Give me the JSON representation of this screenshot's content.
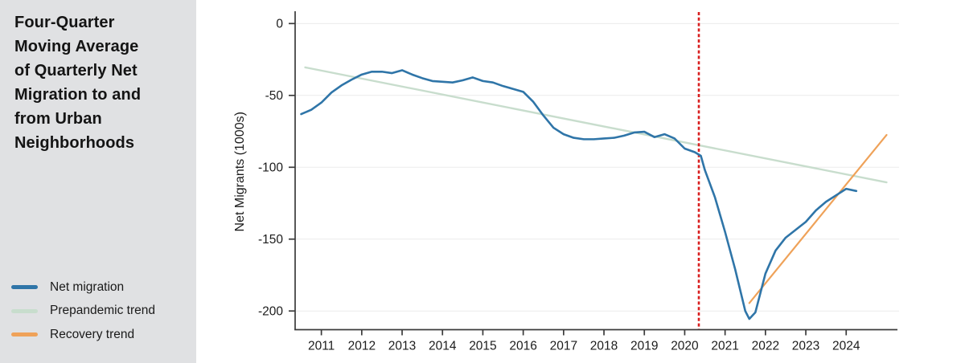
{
  "sidebar": {
    "background": "#e0e1e3",
    "title": "Four-Quarter Moving Average of Quarterly Net Migration to and from Urban Neighborhoods",
    "title_lines": [
      "Four-Quarter",
      "Moving Average",
      "of Quarterly Net",
      "Migration to and",
      "from Urban",
      "Neighborhoods"
    ],
    "legend": {
      "items": [
        {
          "label": "Net migration",
          "color": "#2f75a8"
        },
        {
          "label": "Prepandemic trend",
          "color": "#c8ddcd"
        },
        {
          "label": "Recovery trend",
          "color": "#efa259"
        }
      ]
    }
  },
  "chart_data": {
    "type": "line",
    "title": "Four-Quarter Moving Average of Quarterly Net Migration to and from Urban Neighborhoods",
    "xlabel": "",
    "ylabel": "Net Migrants (1000s)",
    "xlim": [
      2010.35,
      2025.25
    ],
    "ylim": [
      -213,
      8
    ],
    "x_ticks": [
      2011,
      2012,
      2013,
      2014,
      2015,
      2016,
      2017,
      2018,
      2019,
      2020,
      2021,
      2022,
      2023,
      2024
    ],
    "y_ticks": [
      0,
      -50,
      -100,
      -150,
      -200
    ],
    "grid": "horizontal",
    "gridline_color": "#ececec",
    "axis_color": "#3b3b3b",
    "legend_position": "outside-left",
    "series": [
      {
        "name": "Net migration",
        "color": "#2f75a8",
        "width": 2.6,
        "points": [
          [
            2010.5,
            -63
          ],
          [
            2010.75,
            -60
          ],
          [
            2011.0,
            -55
          ],
          [
            2011.25,
            -48
          ],
          [
            2011.5,
            -43
          ],
          [
            2011.75,
            -39
          ],
          [
            2012.0,
            -35.5
          ],
          [
            2012.25,
            -33.5
          ],
          [
            2012.5,
            -33.5
          ],
          [
            2012.75,
            -34.5
          ],
          [
            2013.0,
            -32.5
          ],
          [
            2013.25,
            -35.5
          ],
          [
            2013.5,
            -38
          ],
          [
            2013.75,
            -40
          ],
          [
            2014.0,
            -40.5
          ],
          [
            2014.25,
            -41
          ],
          [
            2014.5,
            -39.5
          ],
          [
            2014.75,
            -37.5
          ],
          [
            2015.0,
            -40
          ],
          [
            2015.25,
            -41
          ],
          [
            2015.5,
            -43.5
          ],
          [
            2015.75,
            -45.5
          ],
          [
            2016.0,
            -47.5
          ],
          [
            2016.25,
            -54.5
          ],
          [
            2016.5,
            -64
          ],
          [
            2016.75,
            -72.5
          ],
          [
            2017.0,
            -77
          ],
          [
            2017.25,
            -79.5
          ],
          [
            2017.5,
            -80.5
          ],
          [
            2017.75,
            -80.5
          ],
          [
            2018.0,
            -80
          ],
          [
            2018.25,
            -79.5
          ],
          [
            2018.5,
            -78
          ],
          [
            2018.75,
            -75.8
          ],
          [
            2019.0,
            -75.3
          ],
          [
            2019.25,
            -79
          ],
          [
            2019.5,
            -77
          ],
          [
            2019.75,
            -80
          ],
          [
            2020.0,
            -87
          ],
          [
            2020.25,
            -89.5
          ],
          [
            2020.4,
            -92
          ],
          [
            2020.5,
            -102
          ],
          [
            2020.75,
            -121
          ],
          [
            2021.0,
            -145
          ],
          [
            2021.25,
            -171
          ],
          [
            2021.5,
            -200
          ],
          [
            2021.6,
            -205.5
          ],
          [
            2021.75,
            -201
          ],
          [
            2022.0,
            -174
          ],
          [
            2022.25,
            -158
          ],
          [
            2022.5,
            -149
          ],
          [
            2022.75,
            -143.5
          ],
          [
            2023.0,
            -138
          ],
          [
            2023.25,
            -130
          ],
          [
            2023.5,
            -124
          ],
          [
            2023.75,
            -119.5
          ],
          [
            2024.0,
            -115
          ],
          [
            2024.25,
            -116.5
          ]
        ]
      },
      {
        "name": "Prepandemic trend",
        "color": "#c8ddcd",
        "width": 2.4,
        "points": [
          [
            2010.6,
            -30.5
          ],
          [
            2025.0,
            -110.5
          ]
        ]
      },
      {
        "name": "Recovery trend",
        "color": "#efa259",
        "width": 2.2,
        "points": [
          [
            2021.6,
            -194.5
          ],
          [
            2025.0,
            -77.5
          ]
        ]
      }
    ],
    "annotations": [
      {
        "type": "vline",
        "name": "pandemic-start-marker",
        "x": 2020.35,
        "color": "#d81e1e",
        "style": "dashed",
        "dash": [
          4,
          2.8
        ],
        "width": 2.6
      }
    ]
  }
}
